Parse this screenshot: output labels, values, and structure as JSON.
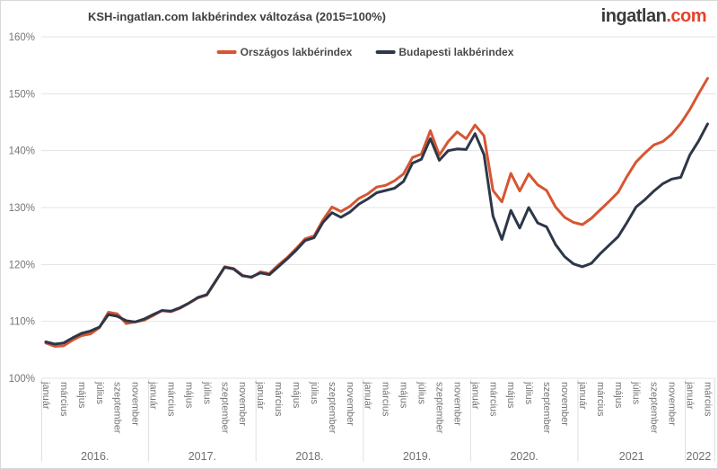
{
  "logo": {
    "name": "ingatlan",
    "tld": ".com",
    "name_color": "#3b3b3b",
    "tld_color": "#e8402c"
  },
  "chart_data": {
    "type": "line",
    "title": "KSH-ingatlan.com lakbérindex változása (2015=100%)",
    "xlabel": "",
    "ylabel": "",
    "ylim": [
      100,
      160
    ],
    "y_ticks": [
      "100%",
      "110%",
      "120%",
      "130%",
      "140%",
      "150%",
      "160%"
    ],
    "grid": true,
    "legend_position": "top",
    "x_month_labels": [
      "január",
      "március",
      "május",
      "július",
      "szeptember",
      "november"
    ],
    "years": [
      {
        "label": "2016.",
        "months": 12
      },
      {
        "label": "2017.",
        "months": 12
      },
      {
        "label": "2018.",
        "months": 12
      },
      {
        "label": "2019.",
        "months": 12
      },
      {
        "label": "2020.",
        "months": 12
      },
      {
        "label": "2021",
        "months": 12
      },
      {
        "label": "2022",
        "months": 3
      }
    ],
    "series": [
      {
        "name": "Országos lakbérindex",
        "color": "#d65632",
        "values": [
          106.2,
          105.6,
          105.7,
          106.7,
          107.5,
          107.8,
          108.9,
          111.6,
          111.3,
          109.6,
          109.9,
          110.2,
          111.0,
          111.9,
          111.7,
          112.3,
          113.2,
          114.1,
          114.6,
          117.0,
          119.6,
          119.3,
          118.1,
          117.7,
          118.7,
          118.4,
          119.9,
          121.2,
          122.8,
          124.5,
          125.0,
          127.8,
          130.1,
          129.3,
          130.2,
          131.6,
          132.4,
          133.6,
          133.9,
          134.7,
          135.9,
          138.8,
          139.4,
          143.5,
          139.2,
          141.6,
          143.3,
          142.1,
          144.5,
          142.6,
          133.0,
          131.0,
          136.0,
          132.9,
          135.9,
          134.0,
          133.0,
          130.1,
          128.3,
          127.4,
          127.0,
          128.1,
          129.6,
          131.1,
          132.7,
          135.5,
          138.0,
          139.6,
          141.0,
          141.6,
          142.9,
          144.8,
          147.2,
          150.0,
          152.7
        ]
      },
      {
        "name": "Budapesti lakbérindex",
        "color": "#2d3748",
        "values": [
          106.4,
          106.0,
          106.2,
          107.1,
          107.9,
          108.3,
          109.0,
          111.2,
          110.9,
          110.1,
          109.9,
          110.4,
          111.2,
          111.9,
          111.8,
          112.4,
          113.2,
          114.2,
          114.7,
          117.1,
          119.5,
          119.2,
          118.0,
          117.8,
          118.5,
          118.2,
          119.6,
          121.0,
          122.5,
          124.2,
          124.7,
          127.4,
          129.1,
          128.3,
          129.2,
          130.6,
          131.5,
          132.6,
          133.0,
          133.4,
          134.6,
          137.8,
          138.5,
          142.1,
          138.3,
          140.0,
          140.3,
          140.2,
          143.0,
          139.3,
          128.5,
          124.4,
          129.5,
          126.4,
          130.0,
          127.3,
          126.6,
          123.5,
          121.4,
          120.1,
          119.6,
          120.2,
          121.9,
          123.4,
          124.9,
          127.4,
          130.1,
          131.4,
          132.9,
          134.2,
          135.0,
          135.3,
          139.2,
          141.7,
          144.7
        ]
      }
    ],
    "colors": {
      "grid": "#e3e3e3",
      "separator": "#e0e0e0",
      "axis_text": "#757575",
      "year_text": "#6f6f6f",
      "background": "#ffffff",
      "border": "#d9d9d9"
    }
  }
}
